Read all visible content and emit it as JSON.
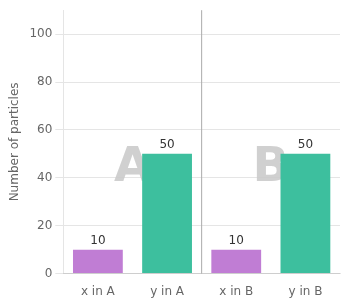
{
  "chart_data": {
    "type": "bar",
    "categories": [
      "x in A",
      "y in A",
      "x in B",
      "y in B"
    ],
    "values": [
      10,
      50,
      10,
      50
    ],
    "colors": [
      "#c07dd4",
      "#3dbf9e",
      "#c07dd4",
      "#3dbf9e"
    ],
    "ylabel": "Number of particles",
    "ylim": [
      0,
      110
    ],
    "yticks": [
      0,
      20,
      40,
      60,
      80,
      100
    ],
    "grid": true,
    "data_labels": true,
    "annotations": [
      "A",
      "B"
    ]
  }
}
